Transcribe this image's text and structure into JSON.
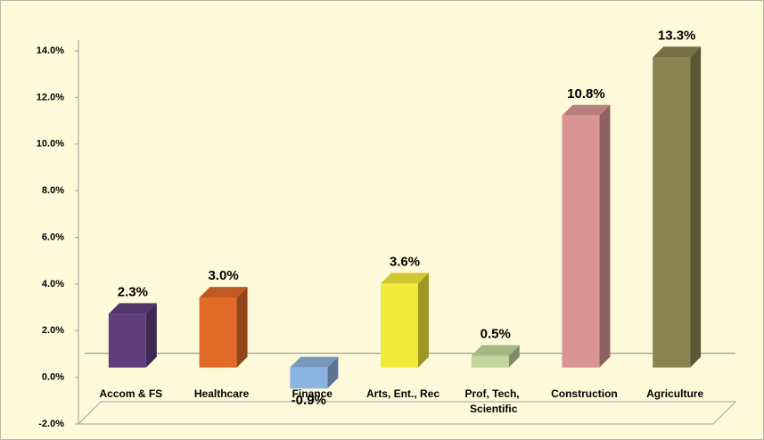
{
  "chart_data": {
    "type": "bar3d",
    "categories": [
      "Accom & FS",
      "Healthcare",
      "Finance",
      "Arts, Ent., Rec",
      "Prof, Tech, Scientific",
      "Construction",
      "Agriculture"
    ],
    "values": [
      2.3,
      3.0,
      -0.9,
      3.6,
      0.5,
      10.8,
      13.3
    ],
    "value_labels": [
      "2.3%",
      "3.0%",
      "-0.9%",
      "3.6%",
      "0.5%",
      "10.8%",
      "13.3%"
    ],
    "colors": [
      "#5e3f7c",
      "#e26a28",
      "#8db3e2",
      "#f2ea3a",
      "#c3d69b",
      "#d99594",
      "#8c8450"
    ],
    "ylim": [
      -2,
      14
    ],
    "yticks": [
      {
        "value": -2,
        "label": "-2.0%"
      },
      {
        "value": 0,
        "label": "0.0%"
      },
      {
        "value": 2,
        "label": "2.0%"
      },
      {
        "value": 4,
        "label": "4.0%"
      },
      {
        "value": 6,
        "label": "6.0%"
      },
      {
        "value": 8,
        "label": "8.0%"
      },
      {
        "value": 10,
        "label": "10.0%"
      },
      {
        "value": 12,
        "label": "12.0%"
      },
      {
        "value": 14,
        "label": "14.0%"
      }
    ]
  }
}
